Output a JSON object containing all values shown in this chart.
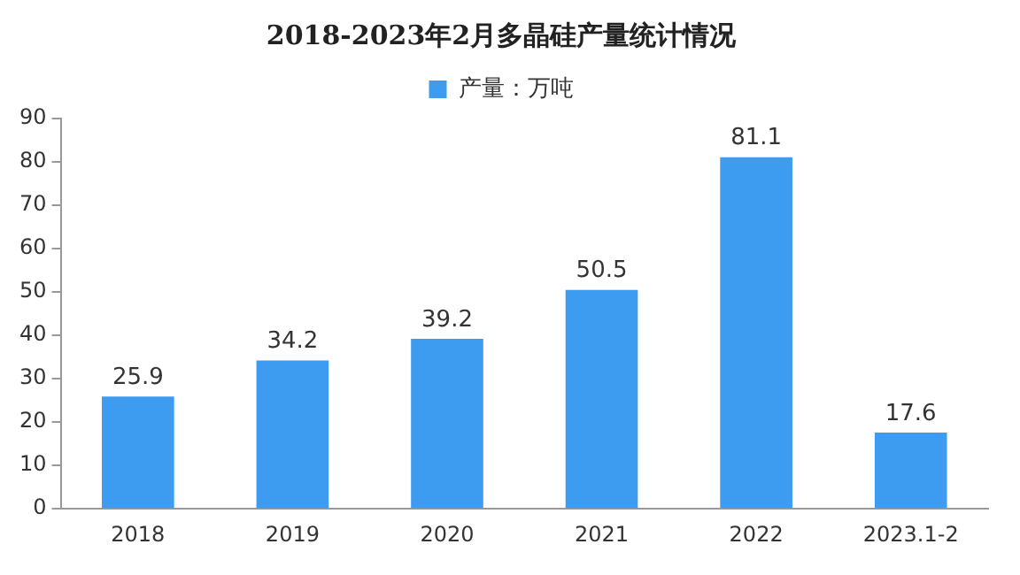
{
  "chart_data": {
    "type": "bar",
    "title": "2018-2023年2月多晶硅产量统计情况",
    "categories": [
      "2018",
      "2019",
      "2020",
      "2021",
      "2022",
      "2023.1-2"
    ],
    "series": [
      {
        "name": "产量：万吨",
        "color": "#3d9cf0",
        "values": [
          25.9,
          34.2,
          39.2,
          50.5,
          81.1,
          17.6
        ]
      }
    ],
    "ylim": [
      0,
      90
    ],
    "yticks": [
      0,
      10,
      20,
      30,
      40,
      50,
      60,
      70,
      80,
      90
    ],
    "grid": false,
    "legend": "top",
    "data_labels": true
  }
}
